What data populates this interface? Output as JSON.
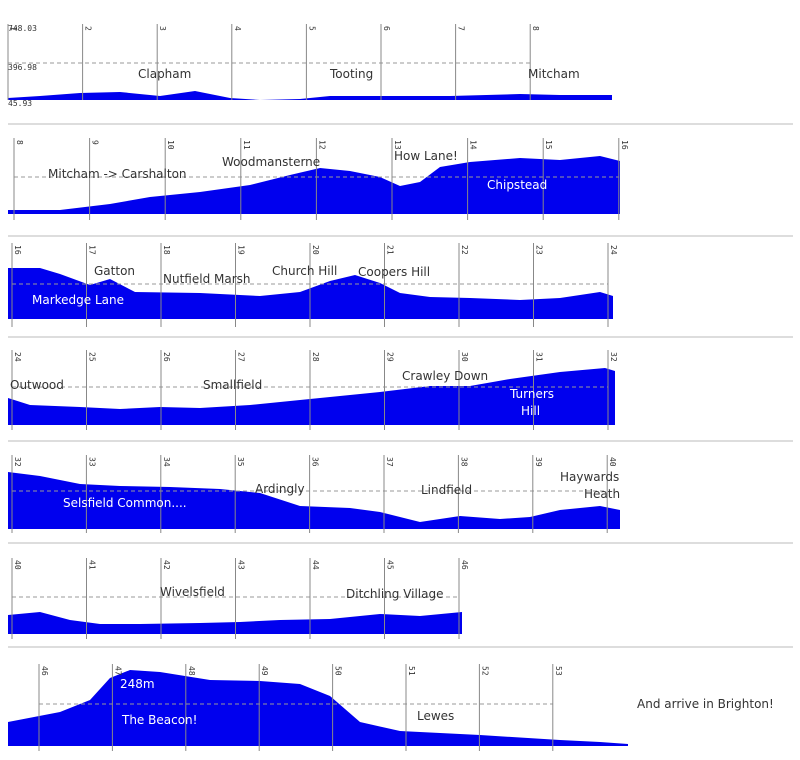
{
  "chart_data": {
    "type": "area",
    "y_tick_labels": [
      "748.03",
      "396.98",
      "45.93"
    ],
    "ylim": [
      45.93,
      748.03
    ],
    "peak_label": "248m",
    "finish_text": "And arrive in Brighton!",
    "colors": {
      "fill": "#0000ee",
      "gridline": "#999999",
      "finish": "#ee0000",
      "separator": "#bbbbbb"
    },
    "rows": [
      {
        "ticks": [
          "1",
          "2",
          "3",
          "4",
          "5",
          "6",
          "7",
          "8"
        ],
        "labels": [
          {
            "text": "Clapham",
            "color": "dark"
          },
          {
            "text": "Tooting",
            "color": "dark"
          },
          {
            "text": "Mitcham",
            "color": "dark"
          }
        ]
      },
      {
        "ticks": [
          "8",
          "9",
          "10",
          "11",
          "12",
          "13",
          "14",
          "15",
          "16"
        ],
        "labels": [
          {
            "text": "Mitcham -> Carshalton",
            "color": "dark"
          },
          {
            "text": "Woodmansterne",
            "color": "dark"
          },
          {
            "text": "How Lane!",
            "color": "dark"
          },
          {
            "text": "Chipstead",
            "color": "light"
          }
        ]
      },
      {
        "ticks": [
          "16",
          "17",
          "18",
          "19",
          "20",
          "21",
          "22",
          "23",
          "24"
        ],
        "labels": [
          {
            "text": "Gatton",
            "color": "dark"
          },
          {
            "text": "Nutfield Marsh",
            "color": "dark"
          },
          {
            "text": "Church Hill",
            "color": "dark"
          },
          {
            "text": "Coopers Hill",
            "color": "dark"
          },
          {
            "text": "Markedge Lane",
            "color": "light"
          }
        ]
      },
      {
        "ticks": [
          "24",
          "25",
          "26",
          "27",
          "28",
          "29",
          "30",
          "31",
          "32"
        ],
        "labels": [
          {
            "text": "Outwood",
            "color": "dark"
          },
          {
            "text": "Smallfield",
            "color": "dark"
          },
          {
            "text": "Crawley Down",
            "color": "dark"
          },
          {
            "text": "Turners",
            "color": "light"
          },
          {
            "text": "Hill",
            "color": "light"
          }
        ]
      },
      {
        "ticks": [
          "32",
          "33",
          "34",
          "35",
          "36",
          "37",
          "38",
          "39",
          "40"
        ],
        "labels": [
          {
            "text": "Selsfield Common....",
            "color": "light"
          },
          {
            "text": "Ardingly",
            "color": "dark"
          },
          {
            "text": "Lindfield",
            "color": "dark"
          },
          {
            "text": "Haywards",
            "color": "dark"
          },
          {
            "text": "Heath",
            "color": "dark"
          }
        ]
      },
      {
        "ticks": [
          "40",
          "41",
          "42",
          "43",
          "44",
          "45",
          "46"
        ],
        "labels": [
          {
            "text": "Wivelsfield",
            "color": "dark"
          },
          {
            "text": "Ditchling Village",
            "color": "dark"
          }
        ]
      },
      {
        "ticks": [
          "46",
          "47",
          "48",
          "49",
          "50",
          "51",
          "52",
          "53"
        ],
        "labels": [
          {
            "text": "The Beacon!",
            "color": "light"
          },
          {
            "text": "Lewes",
            "color": "dark"
          }
        ]
      }
    ]
  }
}
